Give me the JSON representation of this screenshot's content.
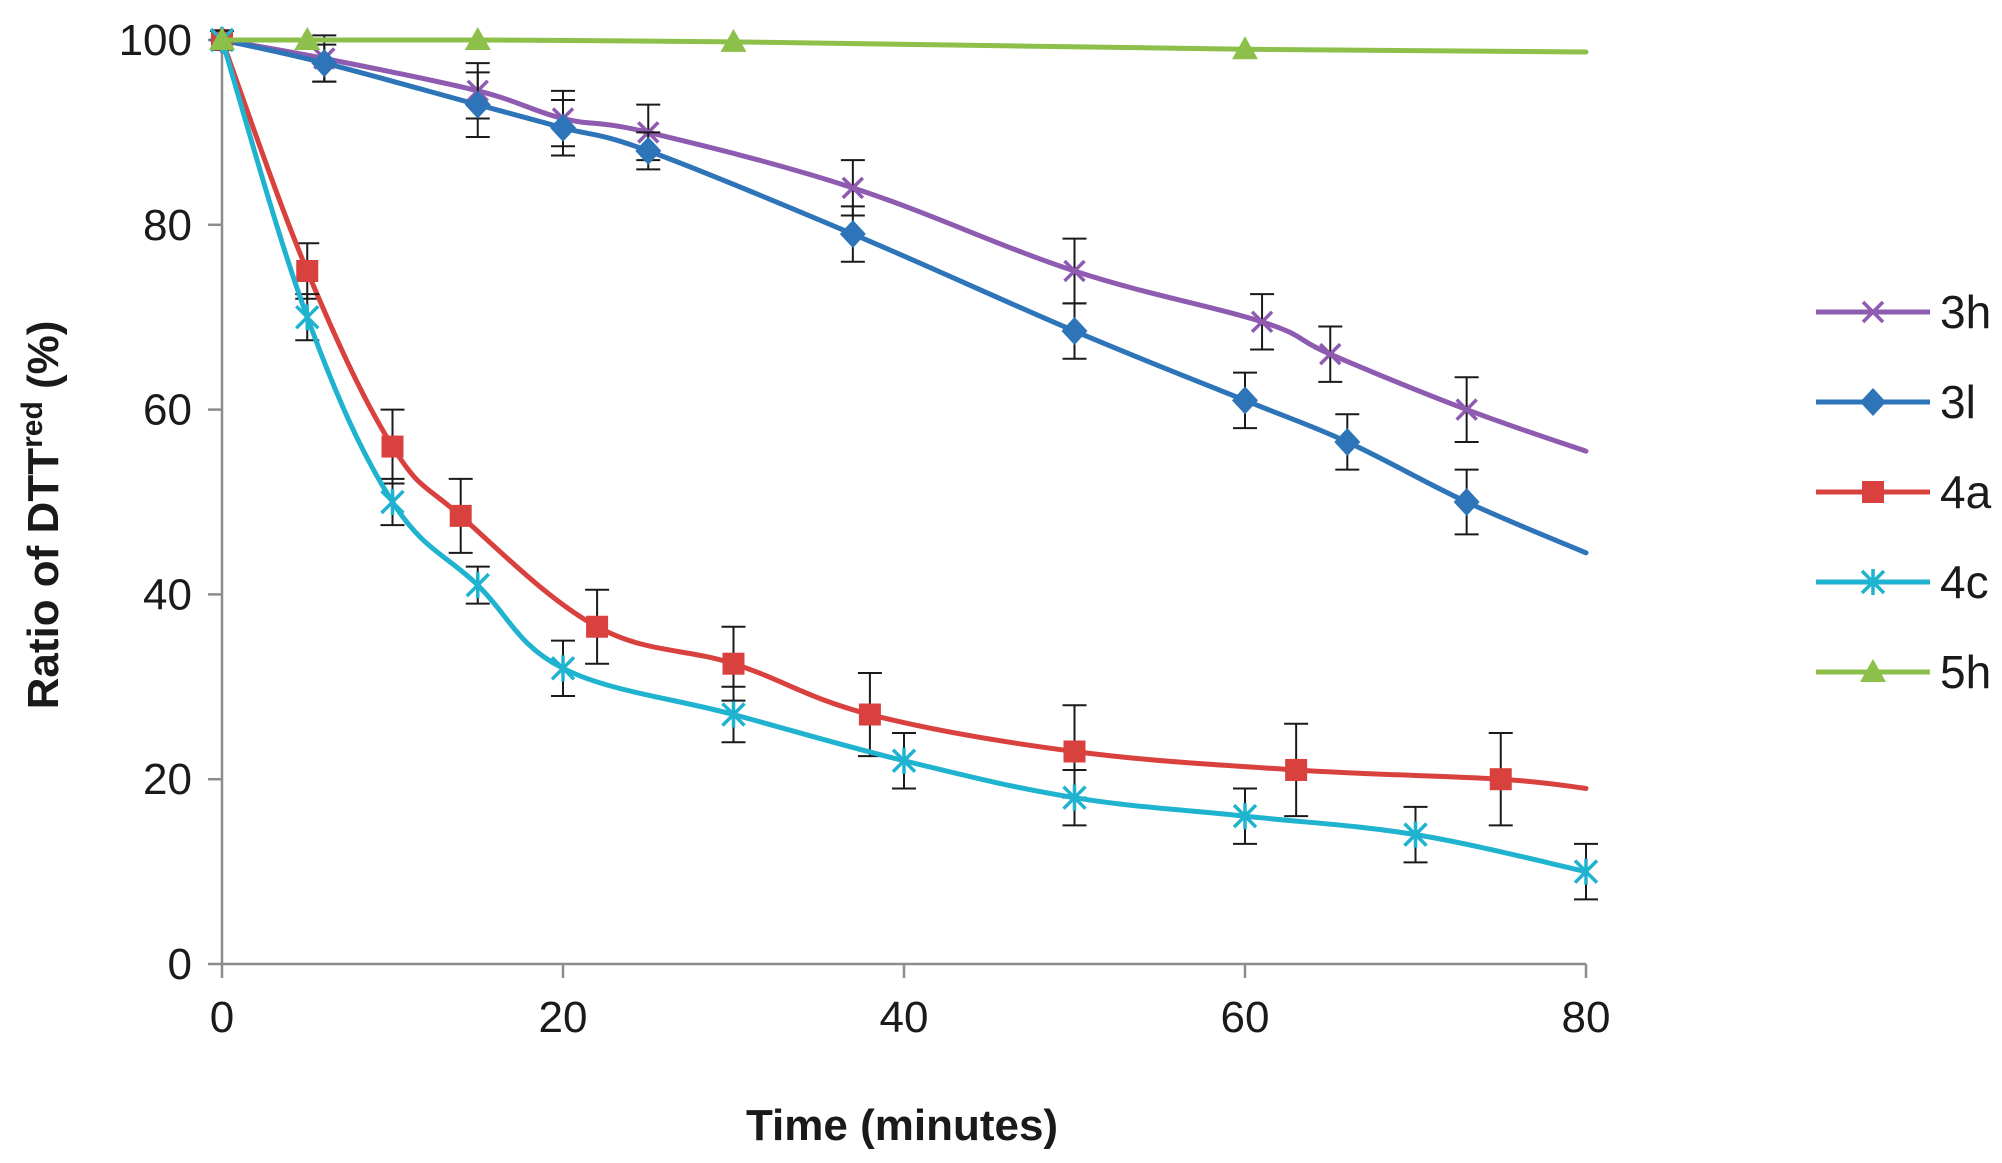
{
  "chart_data": {
    "type": "line",
    "title": "",
    "xlabel": "Time (minutes)",
    "ylabel_main": "Ratio of DTT",
    "ylabel_sup": "red",
    "ylabel_tail": " (%)",
    "xlim": [
      0,
      80
    ],
    "ylim": [
      0,
      100
    ],
    "xticks": [
      0,
      20,
      40,
      60,
      80
    ],
    "yticks": [
      0,
      20,
      40,
      60,
      80,
      100
    ],
    "grid": false,
    "legend_position": "right",
    "series": [
      {
        "name": "3h",
        "color": "#8e5bb0",
        "marker": "x",
        "x": [
          0,
          6,
          15,
          20,
          25,
          37,
          50,
          61,
          65,
          73,
          80
        ],
        "y": [
          100,
          98,
          94.5,
          91.5,
          90,
          84,
          75,
          69.5,
          66,
          60,
          55.5
        ],
        "err": [
          1,
          2.5,
          3,
          3,
          3,
          3,
          3.5,
          3,
          3,
          3.5,
          0
        ]
      },
      {
        "name": "3l",
        "color": "#2e74b8",
        "marker": "diamond",
        "x": [
          0,
          6,
          15,
          20,
          25,
          37,
          50,
          60,
          66,
          73,
          80
        ],
        "y": [
          100,
          97.5,
          93,
          90.5,
          88,
          79,
          68.5,
          61,
          56.5,
          50,
          44.5
        ],
        "err": [
          1,
          2,
          3.5,
          3,
          2,
          3,
          3,
          3,
          3,
          3.5,
          0
        ]
      },
      {
        "name": "4a",
        "color": "#d9413f",
        "marker": "square",
        "x": [
          0,
          5,
          10,
          14,
          22,
          30,
          38,
          50,
          63,
          75,
          80
        ],
        "y": [
          100,
          75,
          56,
          48.5,
          36.5,
          32.5,
          27,
          23,
          21,
          20,
          19
        ],
        "err": [
          1,
          3,
          4,
          4,
          4,
          4,
          4.5,
          5,
          5,
          5,
          0
        ]
      },
      {
        "name": "4c",
        "color": "#1fb3cf",
        "marker": "star",
        "x": [
          0,
          5,
          10,
          15,
          20,
          30,
          40,
          50,
          60,
          70,
          80
        ],
        "y": [
          100,
          70,
          50,
          41,
          32,
          27,
          22,
          18,
          16,
          14,
          10
        ],
        "err": [
          1,
          2.5,
          2.5,
          2,
          3,
          3,
          3,
          3,
          3,
          3,
          3
        ]
      },
      {
        "name": "5h",
        "color": "#8cc04a",
        "marker": "triangle",
        "x": [
          0,
          5,
          15,
          30,
          60,
          80
        ],
        "y": [
          100,
          100,
          100,
          99.8,
          99,
          98.7
        ],
        "err": [
          0,
          0,
          0,
          0,
          0,
          0
        ]
      }
    ]
  }
}
